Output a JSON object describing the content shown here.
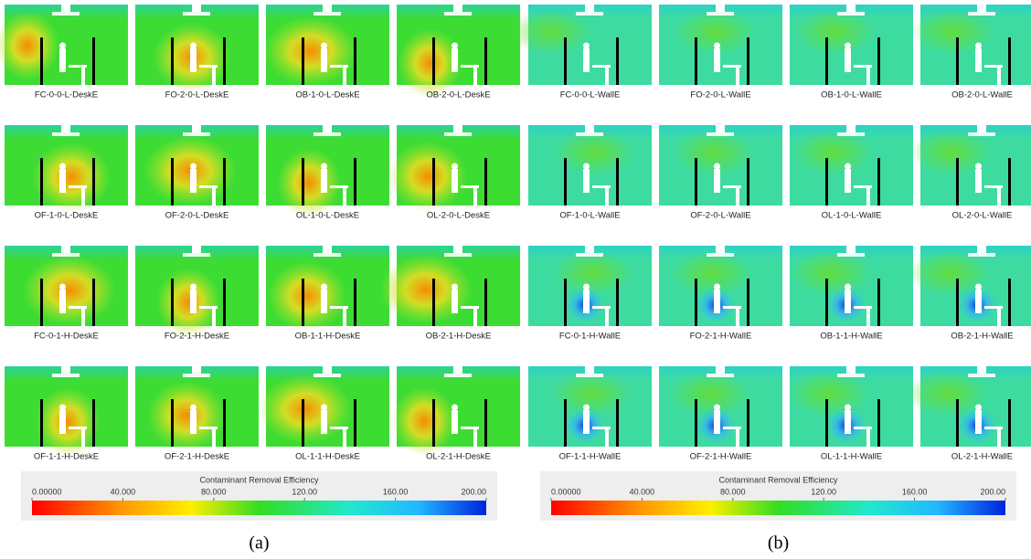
{
  "panels": [
    {
      "label": "(a)",
      "thumbnails": [
        "FC-0-0-L-DeskE",
        "FO-2-0-L-DeskE",
        "OB-1-0-L-DeskE",
        "OB-2-0-L-DeskE",
        "OF-1-0-L-DeskE",
        "OF-2-0-L-DeskE",
        "OL-1-0-L-DeskE",
        "OL-2-0-L-DeskE",
        "FC-0-1-H-DeskE",
        "FO-2-1-H-DeskE",
        "OB-1-1-H-DeskE",
        "OB-2-1-H-DeskE",
        "OF-1-1-H-DeskE",
        "OF-2-1-H-DeskE",
        "OL-1-1-H-DeskE",
        "OL-2-1-H-DeskE"
      ],
      "colorbar": {
        "title": "Contaminant Removal Efficiency",
        "range": [
          0,
          200
        ],
        "ticks": [
          {
            "value": 0,
            "label": "0.00000"
          },
          {
            "value": 40,
            "label": "40.000"
          },
          {
            "value": 80,
            "label": "80.000"
          },
          {
            "value": 120,
            "label": "120.00"
          },
          {
            "value": 160,
            "label": "160.00"
          },
          {
            "value": 200,
            "label": "200.00"
          }
        ]
      }
    },
    {
      "label": "(b)",
      "thumbnails": [
        "FC-0-0-L-WallE",
        "FO-2-0-L-WallE",
        "OB-1-0-L-WallE",
        "OB-2-0-L-WallE",
        "OF-1-0-L-WallE",
        "OF-2-0-L-WallE",
        "OL-1-0-L-WallE",
        "OL-2-0-L-WallE",
        "FC-0-1-H-WallE",
        "FO-2-1-H-WallE",
        "OB-1-1-H-WallE",
        "OB-2-1-H-WallE",
        "OF-1-1-H-WallE",
        "OF-2-1-H-WallE",
        "OL-1-1-H-WallE",
        "OL-2-1-H-WallE"
      ],
      "colorbar": {
        "title": "Contaminant Removal Efficiency",
        "range": [
          0,
          200
        ],
        "ticks": [
          {
            "value": 0,
            "label": "0.00000"
          },
          {
            "value": 40,
            "label": "40.000"
          },
          {
            "value": 80,
            "label": "80.000"
          },
          {
            "value": 120,
            "label": "120.00"
          },
          {
            "value": 160,
            "label": "160.00"
          },
          {
            "value": 200,
            "label": "200.00"
          }
        ]
      }
    }
  ]
}
